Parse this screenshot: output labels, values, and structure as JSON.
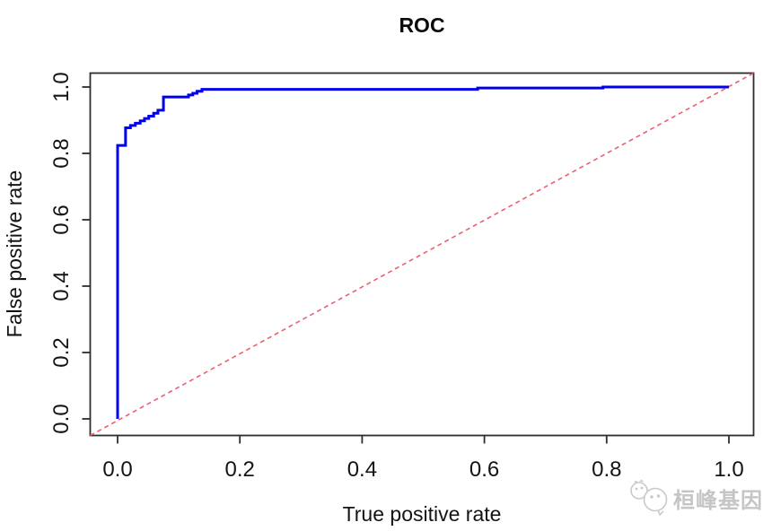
{
  "chart_data": {
    "type": "line",
    "title": "ROC",
    "xlabel": "True positive rate",
    "ylabel": "False positive rate",
    "xlim": [
      0,
      1
    ],
    "ylim": [
      0,
      1
    ],
    "grid": false,
    "legend": "none",
    "x_ticks": [
      0.0,
      0.2,
      0.4,
      0.6,
      0.8,
      1.0
    ],
    "y_ticks": [
      0.0,
      0.2,
      0.4,
      0.6,
      0.8,
      1.0
    ],
    "x_tick_labels": [
      "0.0",
      "0.2",
      "0.4",
      "0.6",
      "0.8",
      "1.0"
    ],
    "y_tick_labels": [
      "0.0",
      "0.2",
      "0.4",
      "0.6",
      "0.8",
      "1.0"
    ],
    "series": [
      {
        "name": "ROC curve",
        "color": "#0000EE",
        "style": "solid",
        "line_width": 3,
        "points": [
          [
            0.0,
            0.0
          ],
          [
            0.0,
            0.824
          ],
          [
            0.013,
            0.824
          ],
          [
            0.013,
            0.877
          ],
          [
            0.021,
            0.877
          ],
          [
            0.021,
            0.884
          ],
          [
            0.029,
            0.884
          ],
          [
            0.029,
            0.891
          ],
          [
            0.037,
            0.891
          ],
          [
            0.037,
            0.898
          ],
          [
            0.044,
            0.898
          ],
          [
            0.044,
            0.905
          ],
          [
            0.051,
            0.905
          ],
          [
            0.051,
            0.912
          ],
          [
            0.059,
            0.912
          ],
          [
            0.059,
            0.921
          ],
          [
            0.066,
            0.921
          ],
          [
            0.066,
            0.93
          ],
          [
            0.075,
            0.93
          ],
          [
            0.075,
            0.97
          ],
          [
            0.116,
            0.97
          ],
          [
            0.116,
            0.976
          ],
          [
            0.123,
            0.976
          ],
          [
            0.123,
            0.981
          ],
          [
            0.13,
            0.981
          ],
          [
            0.13,
            0.987
          ],
          [
            0.138,
            0.987
          ],
          [
            0.138,
            0.993
          ],
          [
            0.145,
            0.993
          ],
          [
            0.589,
            0.993
          ],
          [
            0.589,
            0.997
          ],
          [
            0.794,
            0.997
          ],
          [
            0.794,
            1.0
          ],
          [
            1.0,
            1.0
          ]
        ]
      },
      {
        "name": "chance diagonal",
        "color": "#EC5F70",
        "style": "dashed",
        "line_width": 1.6,
        "points": [
          [
            0,
            0
          ],
          [
            1,
            1
          ]
        ],
        "spans_full_plot_region": true
      }
    ]
  },
  "watermark": {
    "text": "桓峰基因",
    "logo": "chick-chat-bubbles-logo"
  }
}
